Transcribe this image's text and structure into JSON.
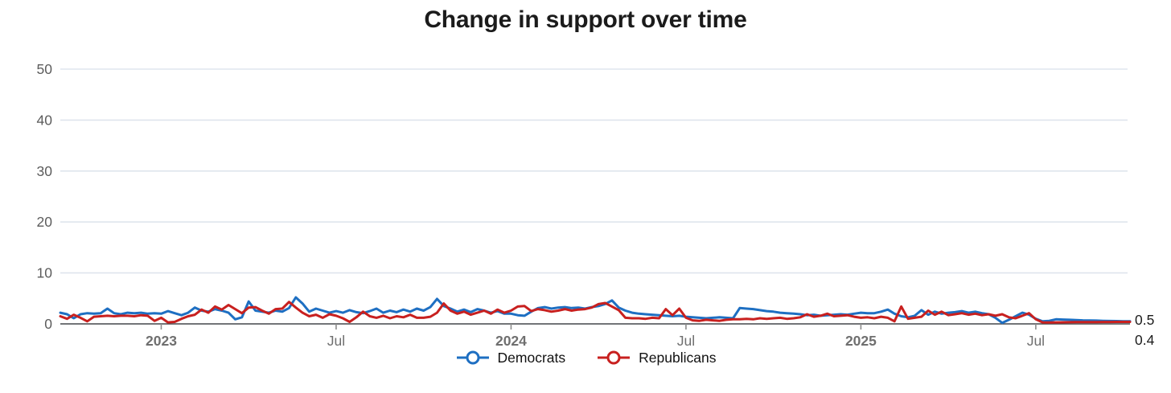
{
  "title": "Change in support over time",
  "colors": {
    "democrats": "#1e6fc2",
    "republicans": "#c8201f",
    "grid": "#dfe5ed",
    "axis": "#44474a",
    "tick": "#8c8c8c",
    "tick_label": "#6f6f6f",
    "y_label": "#5c5c5c",
    "title_text": "#1b1b1b",
    "background": "#ffffff"
  },
  "legend": [
    {
      "label": "Democrats",
      "color": "#1e6fc2"
    },
    {
      "label": "Republicans",
      "color": "#c8201f"
    }
  ],
  "chart_data": {
    "type": "line",
    "title": "Change in support over time",
    "xlabel": "",
    "ylabel": "",
    "ylim": [
      0,
      50
    ],
    "yticks": [
      0,
      10,
      20,
      30,
      40,
      50
    ],
    "grid": true,
    "legend_position": "bottom-center",
    "x_unit": "weekly points, late 2022 through late 2025",
    "xticks": [
      {
        "index": 15,
        "label": "2023",
        "bold": true
      },
      {
        "index": 41,
        "label": "Jul",
        "bold": false
      },
      {
        "index": 67,
        "label": "2024",
        "bold": true
      },
      {
        "index": 93,
        "label": "Jul",
        "bold": false
      },
      {
        "index": 119,
        "label": "2025",
        "bold": true
      },
      {
        "index": 145,
        "label": "Jul",
        "bold": false
      }
    ],
    "end_value_labels": [
      "0.5",
      "0.4"
    ],
    "series": [
      {
        "name": "Democrats",
        "color": "#1e6fc2",
        "values": [
          2.2,
          1.9,
          1.1,
          1.9,
          2.1,
          2.0,
          2.1,
          3.0,
          2.1,
          1.9,
          2.2,
          2.1,
          2.2,
          2.0,
          2.1,
          2.0,
          2.5,
          2.1,
          1.7,
          2.2,
          3.2,
          2.6,
          2.4,
          2.9,
          2.6,
          2.2,
          0.9,
          1.3,
          4.4,
          2.6,
          2.4,
          2.2,
          2.6,
          2.4,
          3.1,
          5.2,
          4.0,
          2.4,
          3.0,
          2.6,
          2.2,
          2.5,
          2.2,
          2.7,
          2.3,
          2.1,
          2.5,
          3.0,
          2.2,
          2.6,
          2.3,
          2.8,
          2.4,
          3.0,
          2.6,
          3.3,
          4.9,
          3.5,
          3.0,
          2.4,
          2.8,
          2.3,
          2.9,
          2.6,
          2.2,
          2.5,
          2.0,
          2.0,
          1.7,
          1.6,
          2.4,
          3.1,
          3.3,
          3.0,
          3.2,
          3.3,
          3.1,
          3.2,
          3.0,
          3.3,
          3.5,
          3.9,
          4.6,
          3.2,
          2.6,
          2.2,
          2.0,
          1.9,
          1.8,
          1.7,
          1.6,
          1.5,
          1.6,
          1.4,
          1.3,
          1.2,
          1.1,
          1.2,
          1.3,
          1.2,
          1.1,
          3.1,
          3.0,
          2.9,
          2.7,
          2.5,
          2.4,
          2.2,
          2.1,
          2.0,
          1.9,
          1.7,
          1.8,
          1.6,
          1.7,
          1.8,
          1.9,
          1.8,
          2.0,
          2.2,
          2.1,
          2.1,
          2.4,
          2.8,
          2.0,
          1.5,
          1.3,
          1.6,
          2.7,
          1.8,
          2.4,
          2.0,
          2.2,
          2.3,
          2.5,
          2.2,
          2.4,
          2.1,
          1.9,
          1.2,
          0.2,
          0.8,
          1.5,
          2.2,
          1.8,
          1.0,
          0.5,
          0.6,
          0.9,
          0.85,
          0.8,
          0.75,
          0.7,
          0.68,
          0.65,
          0.6,
          0.57,
          0.55,
          0.52,
          0.5
        ]
      },
      {
        "name": "Republicans",
        "color": "#c8201f",
        "values": [
          1.5,
          1.0,
          1.8,
          1.2,
          0.5,
          1.4,
          1.5,
          1.6,
          1.5,
          1.6,
          1.6,
          1.5,
          1.7,
          1.6,
          0.6,
          1.2,
          0.3,
          0.4,
          1.0,
          1.5,
          1.8,
          2.8,
          2.2,
          3.4,
          2.8,
          3.7,
          2.9,
          2.1,
          3.2,
          3.3,
          2.6,
          2.0,
          2.9,
          3.0,
          4.3,
          3.2,
          2.2,
          1.5,
          1.8,
          1.2,
          1.9,
          1.6,
          1.1,
          0.4,
          1.3,
          2.4,
          1.5,
          1.2,
          1.6,
          1.1,
          1.5,
          1.3,
          1.8,
          1.2,
          1.2,
          1.4,
          2.2,
          4.0,
          2.6,
          2.0,
          2.4,
          1.8,
          2.2,
          2.6,
          2.0,
          2.8,
          2.2,
          2.6,
          3.4,
          3.5,
          2.5,
          2.9,
          2.7,
          2.4,
          2.6,
          2.9,
          2.6,
          2.8,
          2.9,
          3.2,
          3.9,
          4.1,
          3.4,
          2.7,
          1.2,
          1.1,
          1.1,
          1.0,
          1.2,
          1.1,
          2.9,
          1.7,
          3.0,
          1.2,
          0.7,
          0.6,
          0.8,
          0.7,
          0.6,
          0.8,
          0.9,
          0.9,
          1.0,
          0.9,
          1.1,
          1.0,
          1.1,
          1.2,
          1.0,
          1.1,
          1.3,
          1.9,
          1.4,
          1.6,
          2.0,
          1.5,
          1.6,
          1.7,
          1.4,
          1.2,
          1.3,
          1.1,
          1.4,
          1.2,
          0.5,
          3.4,
          1.0,
          1.2,
          1.4,
          2.6,
          1.8,
          2.4,
          1.7,
          1.9,
          2.1,
          1.8,
          2.0,
          1.7,
          1.9,
          1.6,
          1.9,
          1.3,
          1.1,
          1.6,
          2.1,
          0.9,
          0.3,
          0.28,
          0.3,
          0.32,
          0.33,
          0.34,
          0.35,
          0.36,
          0.37,
          0.38,
          0.38,
          0.39,
          0.4,
          0.4
        ]
      }
    ]
  }
}
